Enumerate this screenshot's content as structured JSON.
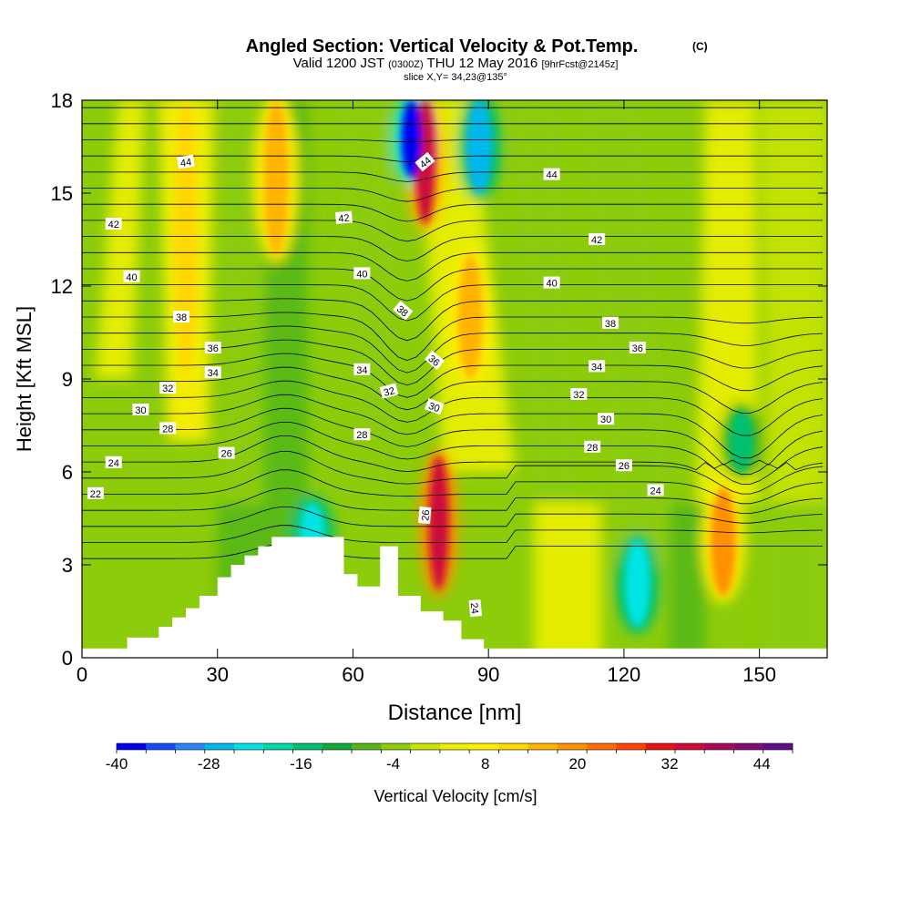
{
  "chart_data": {
    "type": "heatmap",
    "title": "Angled Section: Vertical Velocity & Pot.Temp.",
    "title_units": "(C)",
    "subtitle": {
      "valid": "Valid 1200 JST",
      "utc": "(0300Z)",
      "date": "THU 12 May 2016",
      "forecast": "[9hrFcst@2145z]"
    },
    "slice": "slice X,Y= 34,23@135°",
    "xlabel": "Distance [nm]",
    "ylabel": "Height [Kft MSL]",
    "xlim": [
      0,
      165
    ],
    "ylim": [
      0,
      18
    ],
    "x_ticks": [
      "0",
      "30",
      "60",
      "90",
      "120",
      "150"
    ],
    "y_ticks": [
      "0",
      "3",
      "6",
      "9",
      "12",
      "15",
      "18"
    ],
    "colorbar": {
      "label": "Vertical Velocity [cm/s]",
      "min": -40,
      "max": 48,
      "step": 4,
      "tick_labels": [
        "-40",
        "-28",
        "-16",
        "-4",
        "8",
        "20",
        "32",
        "44"
      ],
      "colors": [
        "#0000f0",
        "#1a4cf5",
        "#2a86f5",
        "#00b8ee",
        "#00e4e4",
        "#00d8a8",
        "#00c070",
        "#10a838",
        "#55b818",
        "#8ccc0a",
        "#c8e400",
        "#ecf000",
        "#fff000",
        "#ffd800",
        "#ffb400",
        "#ff9000",
        "#ff6c00",
        "#ff4400",
        "#e81414",
        "#cc0a3a",
        "#a8085a",
        "#840a74",
        "#5e0e8a"
      ]
    },
    "terrain": {
      "x": [
        0,
        10,
        10,
        17,
        17,
        20,
        20,
        23,
        23,
        26,
        26,
        30,
        30,
        33,
        33,
        36,
        36,
        39,
        39,
        42,
        42,
        58,
        58,
        61,
        61,
        66,
        66,
        70,
        70,
        75,
        75,
        80,
        80,
        84,
        84,
        89,
        89
      ],
      "height_kft": [
        0,
        0,
        0.65,
        0.65,
        1.0,
        1.0,
        1.3,
        1.3,
        1.6,
        1.6,
        2.0,
        2.0,
        2.6,
        2.6,
        3.0,
        3.0,
        3.3,
        3.3,
        3.6,
        3.6,
        3.9,
        3.9,
        2.7,
        2.7,
        2.3,
        2.3,
        3.6,
        3.6,
        2.0,
        2.0,
        1.5,
        1.5,
        1.2,
        1.2,
        0.6,
        0.6,
        0
      ]
    },
    "vertical_velocity_features": [
      {
        "x": 23,
        "kft_range": [
          9,
          18
        ],
        "cm_s": 14
      },
      {
        "x": 43,
        "kft_range": [
          13,
          18
        ],
        "cm_s": 16
      },
      {
        "x": 79,
        "kft_range": [
          2.2,
          6.5
        ],
        "cm_s": 38
      },
      {
        "x": 76,
        "kft_range": [
          14,
          18
        ],
        "cm_s": 36
      },
      {
        "x": 86,
        "kft_range": [
          9,
          13
        ],
        "cm_s": 18
      },
      {
        "x": 73,
        "kft_range": [
          15.5,
          18
        ],
        "cm_s": -38
      },
      {
        "x": 88,
        "kft_range": [
          15,
          18
        ],
        "cm_s": -28
      },
      {
        "x": 51,
        "kft_range": [
          3,
          5
        ],
        "cm_s": -22
      },
      {
        "x": 123,
        "kft_range": [
          1,
          3.8
        ],
        "cm_s": -24
      },
      {
        "x": 142,
        "kft_range": [
          2,
          5.5
        ],
        "cm_s": 20
      },
      {
        "x": 146,
        "kft_range": [
          6,
          8
        ],
        "cm_s": -14
      }
    ],
    "isotherm_labels": [
      {
        "text": "44",
        "x": 23,
        "y": 16.0,
        "angle": -8
      },
      {
        "text": "44",
        "x": 76,
        "y": 16.0,
        "angle": -40
      },
      {
        "text": "44",
        "x": 104,
        "y": 15.6,
        "angle": 0
      },
      {
        "text": "42",
        "x": 7,
        "y": 14.0,
        "angle": 0
      },
      {
        "text": "42",
        "x": 58,
        "y": 14.2,
        "angle": -5
      },
      {
        "text": "42",
        "x": 114,
        "y": 13.5,
        "angle": 0
      },
      {
        "text": "40",
        "x": 11,
        "y": 12.3,
        "angle": 0
      },
      {
        "text": "40",
        "x": 62,
        "y": 12.4,
        "angle": 0
      },
      {
        "text": "40",
        "x": 104,
        "y": 12.1,
        "angle": 0
      },
      {
        "text": "38",
        "x": 22,
        "y": 11.0,
        "angle": 0
      },
      {
        "text": "38",
        "x": 71,
        "y": 11.2,
        "angle": 40
      },
      {
        "text": "38",
        "x": 117,
        "y": 10.8,
        "angle": 0
      },
      {
        "text": "36",
        "x": 29,
        "y": 10.0,
        "angle": 0
      },
      {
        "text": "36",
        "x": 78,
        "y": 9.6,
        "angle": 40
      },
      {
        "text": "36",
        "x": 123,
        "y": 10.0,
        "angle": 0
      },
      {
        "text": "34",
        "x": 29,
        "y": 9.2,
        "angle": 0
      },
      {
        "text": "34",
        "x": 62,
        "y": 9.3,
        "angle": 0
      },
      {
        "text": "34",
        "x": 114,
        "y": 9.4,
        "angle": 0
      },
      {
        "text": "32",
        "x": 19,
        "y": 8.7,
        "angle": 0
      },
      {
        "text": "32",
        "x": 68,
        "y": 8.6,
        "angle": -15
      },
      {
        "text": "32",
        "x": 110,
        "y": 8.5,
        "angle": 0
      },
      {
        "text": "30",
        "x": 13,
        "y": 8.0,
        "angle": 0
      },
      {
        "text": "30",
        "x": 78,
        "y": 8.1,
        "angle": 20
      },
      {
        "text": "30",
        "x": 116,
        "y": 7.7,
        "angle": 0
      },
      {
        "text": "28",
        "x": 19,
        "y": 7.4,
        "angle": 0
      },
      {
        "text": "28",
        "x": 62,
        "y": 7.2,
        "angle": 0
      },
      {
        "text": "28",
        "x": 113,
        "y": 6.8,
        "angle": 0
      },
      {
        "text": "26",
        "x": 32,
        "y": 6.6,
        "angle": 0
      },
      {
        "text": "26",
        "x": 76,
        "y": 4.6,
        "angle": -85
      },
      {
        "text": "26",
        "x": 120,
        "y": 6.2,
        "angle": 0
      },
      {
        "text": "24",
        "x": 7,
        "y": 6.3,
        "angle": 0
      },
      {
        "text": "24",
        "x": 87,
        "y": 1.6,
        "angle": 85
      },
      {
        "text": "24",
        "x": 127,
        "y": 5.4,
        "angle": 0
      },
      {
        "text": "22",
        "x": 3,
        "y": 5.3,
        "angle": 0
      }
    ],
    "grid": false,
    "legend": "bottom"
  }
}
